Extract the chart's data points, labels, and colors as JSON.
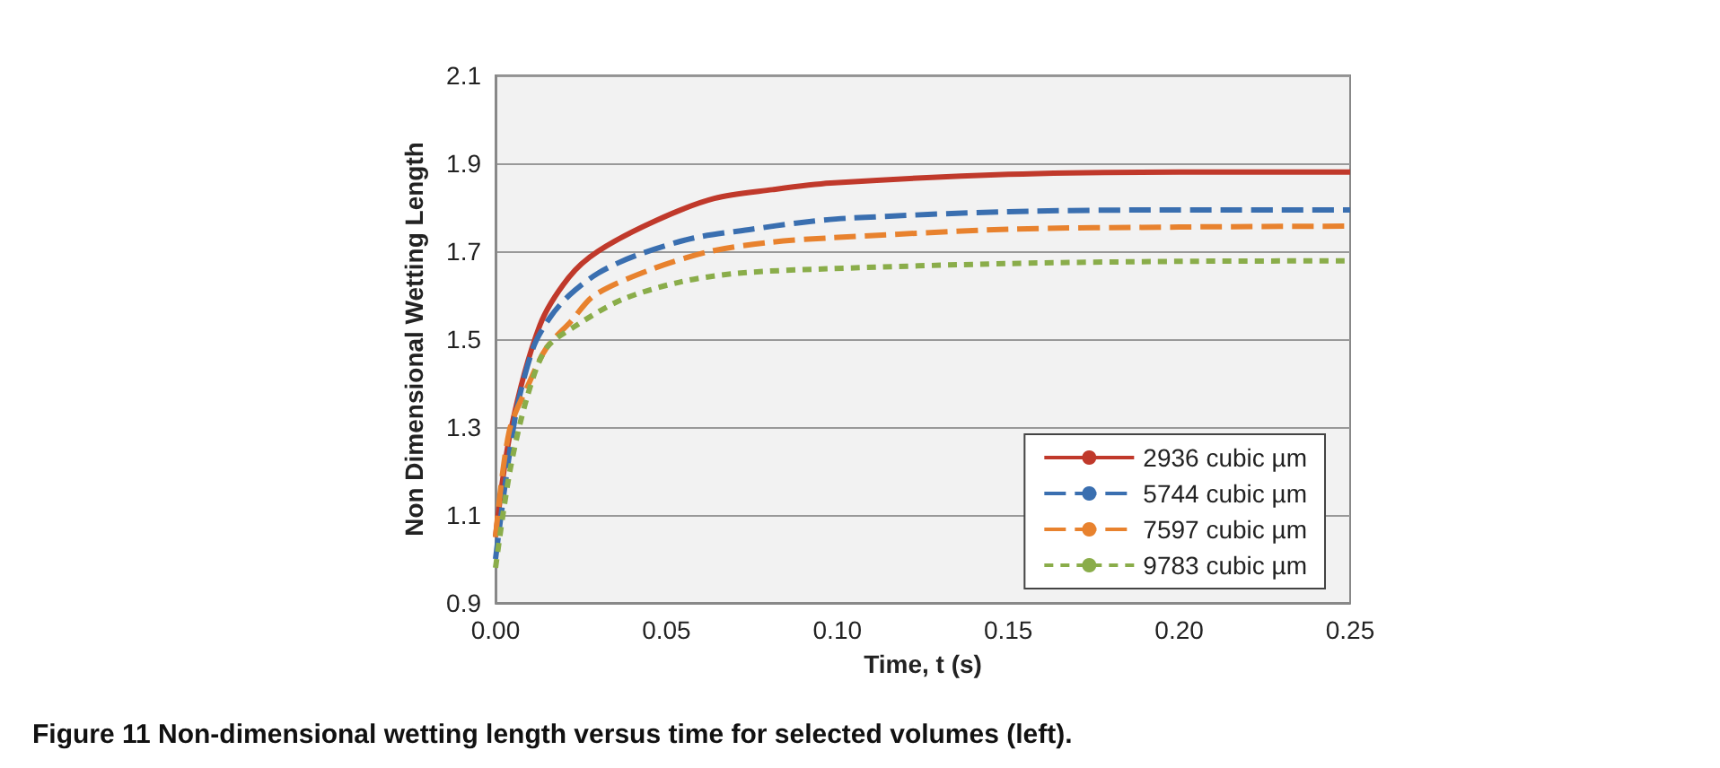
{
  "chart_data": {
    "type": "line",
    "xlabel": "Time, t (s)",
    "ylabel": "Non Dimensional Wetting Length",
    "annotations": [
      "Figure 11 Non-dimensional wetting length versus time for selected volumes (left)."
    ],
    "x": [
      0,
      0.0044,
      0.0129,
      0.0214,
      0.03,
      0.047,
      0.064,
      0.081,
      0.098,
      0.15,
      0.2,
      0.25
    ],
    "series": [
      {
        "name": "2936 cubic µm",
        "color": "#c0392b",
        "line_style": "solid",
        "values": [
          1.05,
          1.29,
          1.53,
          1.64,
          1.7,
          1.77,
          1.82,
          1.84,
          1.855,
          1.875,
          1.88,
          1.88
        ]
      },
      {
        "name": "5744 cubic µm",
        "color": "#3a6fb0",
        "line_style": "dashed",
        "x": [
          0,
          0.0057,
          0.011,
          0.016,
          0.0216,
          0.03,
          0.041,
          0.058,
          0.075,
          0.089,
          0.103,
          0.15,
          0.2,
          0.25
        ],
        "values": [
          1.0,
          1.32,
          1.48,
          1.55,
          1.6,
          1.65,
          1.69,
          1.73,
          1.75,
          1.765,
          1.775,
          1.79,
          1.794,
          1.794
        ]
      },
      {
        "name": "7597 cubic µm",
        "color": "#e8822e",
        "line_style": "dashed",
        "x": [
          0,
          0.004,
          0.0098,
          0.0149,
          0.022,
          0.029,
          0.046,
          0.063,
          0.08,
          0.097,
          0.15,
          0.2,
          0.25
        ],
        "values": [
          1.05,
          1.29,
          1.4,
          1.48,
          1.54,
          1.6,
          1.66,
          1.7,
          1.72,
          1.73,
          1.75,
          1.755,
          1.757
        ]
      },
      {
        "name": "9783 cubic µm",
        "color": "#8aad4a",
        "line_style": "dotted",
        "x": [
          0,
          0.0042,
          0.0093,
          0.0149,
          0.0234,
          0.037,
          0.054,
          0.071,
          0.097,
          0.15,
          0.2,
          0.25
        ],
        "values": [
          0.98,
          1.2,
          1.37,
          1.48,
          1.53,
          1.59,
          1.63,
          1.65,
          1.66,
          1.672,
          1.677,
          1.678
        ]
      }
    ],
    "xlim": [
      0,
      0.25
    ],
    "xticks": [
      {
        "value": 0,
        "label": "0.00"
      },
      0.05,
      {
        "value": 0.1,
        "label": "0.10"
      },
      0.15,
      {
        "value": 0.2,
        "label": "0.20"
      },
      0.25
    ],
    "ylim": [
      0.9,
      2.1
    ],
    "yticks": [
      0.9,
      1.1,
      1.3,
      1.5,
      1.7,
      1.9,
      2.1
    ],
    "grid": "y",
    "legend": "bottom right",
    "marker": "none"
  }
}
